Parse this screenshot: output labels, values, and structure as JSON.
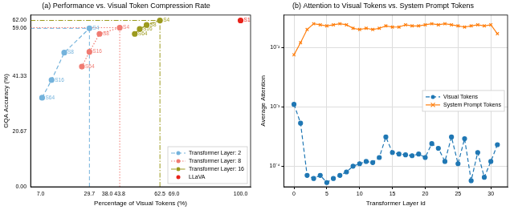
{
  "chart_data": [
    {
      "type": "scatter",
      "title": "(a) Performance vs. Visual Token Compression Rate",
      "x_label": "Percentage of Visual Tokens (%)",
      "y_label": "GQA Accuracy (%)",
      "xlim": [
        2.35,
        104.65
      ],
      "xticks": [
        {
          "value": 7,
          "label": "7.0"
        },
        29.7,
        {
          "value": 38,
          "label": "38.0"
        },
        43.8,
        62.5,
        {
          "value": 69,
          "label": "69.0"
        },
        {
          "value": 100,
          "label": "100.0"
        }
      ],
      "ylim": [
        0,
        64
      ],
      "yticks": [
        {
          "value": 0,
          "label": "0.00"
        },
        20.67,
        41.33,
        59.06,
        {
          "value": 62,
          "label": "62.00"
        }
      ],
      "grid": false,
      "legend": "lower right",
      "series": [
        {
          "name": "Transformer Layer: 2",
          "color": "#74b3dc",
          "line_style": "dashed",
          "marker": "circle",
          "x": [
            7.7,
            12.1,
            18.0,
            29.7
          ],
          "values": [
            33.2,
            39.8,
            50.0,
            59.06
          ],
          "point_labels": [
            "S64",
            "S16",
            "S8",
            "S4"
          ]
        },
        {
          "name": "Transformer Layer: 8",
          "color": "#f07b72",
          "line_style": "dotted",
          "marker": "circle",
          "x": [
            26.2,
            29.7,
            34.4,
            43.8
          ],
          "values": [
            44.8,
            50.3,
            57.0,
            59.3
          ],
          "point_labels": [
            "S64",
            "S16",
            "S8",
            "S4"
          ]
        },
        {
          "name": "Transformer Layer: 16",
          "color": "#9c9a1e",
          "line_style": "dashdot",
          "marker": "circle",
          "x": [
            50.8,
            53.1,
            56.3,
            62.5
          ],
          "values": [
            57.0,
            58.8,
            60.3,
            62.0
          ],
          "point_labels": [
            "S64",
            "S16",
            "S8",
            "S4"
          ]
        },
        {
          "name": "LLaVA",
          "color": "#e8231b",
          "line_style": "none",
          "marker": "circle",
          "x": [
            100
          ],
          "values": [
            62.0
          ],
          "point_labels": [
            "S1"
          ]
        }
      ]
    },
    {
      "type": "line",
      "title": "(b) Attention to Visual Tokens vs. System Prompt Tokens",
      "x_label": "Transformer Layer id",
      "y_label": "Average Attention",
      "x": [
        0,
        1,
        2,
        3,
        4,
        5,
        6,
        7,
        8,
        9,
        10,
        11,
        12,
        13,
        14,
        15,
        16,
        17,
        18,
        19,
        20,
        21,
        22,
        23,
        24,
        25,
        26,
        27,
        28,
        29,
        30,
        31
      ],
      "xlim": [
        -1.55,
        32.55
      ],
      "xticks": [
        0,
        5,
        10,
        15,
        20,
        25,
        30
      ],
      "ylim": [
        4.5e-05,
        0.035
      ],
      "yticks": [
        {
          "value": 0.0001,
          "label": "10⁻⁴"
        },
        {
          "value": 0.001,
          "label": "10⁻³"
        },
        {
          "value": 0.01,
          "label": "10⁻²"
        }
      ],
      "log": "y",
      "grid": true,
      "legend": "center right",
      "series": [
        {
          "name": "Visual Tokens",
          "color": "#1f77b4",
          "line_style": "dashed",
          "marker": "circle",
          "values": [
            0.0011,
            0.00053,
            7e-05,
            6.2e-05,
            7e-05,
            5.3e-05,
            6.2e-05,
            7e-05,
            8e-05,
            0.0001,
            0.00011,
            0.00012,
            0.000115,
            0.00014,
            0.00031,
            0.00017,
            0.00016,
            0.000155,
            0.00015,
            0.00016,
            0.00014,
            0.00024,
            0.0002,
            0.00012,
            0.00031,
            0.00011,
            0.00029,
            5.7e-05,
            0.00017,
            6.5e-05,
            0.00012,
            0.00023
          ]
        },
        {
          "name": "System Prompt Tokens",
          "color": "#ff7f0e",
          "line_style": "solid",
          "marker": "x",
          "values": [
            0.0075,
            0.012,
            0.02,
            0.025,
            0.024,
            0.023,
            0.024,
            0.025,
            0.024,
            0.021,
            0.02,
            0.021,
            0.02,
            0.021,
            0.023,
            0.022,
            0.022,
            0.024,
            0.023,
            0.023,
            0.024,
            0.025,
            0.024,
            0.025,
            0.024,
            0.023,
            0.022,
            0.023,
            0.024,
            0.023,
            0.024,
            0.017
          ]
        }
      ]
    }
  ]
}
